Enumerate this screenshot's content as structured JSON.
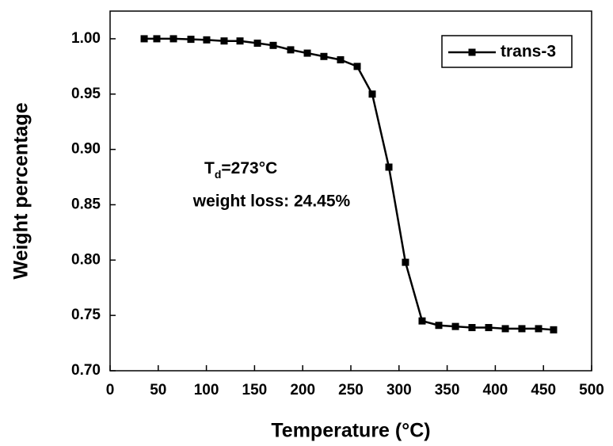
{
  "chart_data": {
    "type": "line",
    "x_label": "Temperature (°C)",
    "y_label": "Weight percentage",
    "annotation": {
      "symbol": "T",
      "subscript": "d",
      "rest": "=273°C",
      "line2": "weight loss: 24.45%"
    },
    "xlim": [
      0,
      500
    ],
    "xticks": [
      0,
      50,
      100,
      150,
      200,
      250,
      300,
      350,
      400,
      450,
      500
    ],
    "ylim": [
      0.7,
      1.025
    ],
    "yticks": [
      {
        "value": 0.7,
        "label": "0.70"
      },
      {
        "value": 0.75,
        "label": "0.75"
      },
      {
        "value": 0.8,
        "label": "0.80"
      },
      {
        "value": 0.85,
        "label": "0.85"
      },
      {
        "value": 0.9,
        "label": "0.90"
      },
      {
        "value": 0.95,
        "label": "0.95"
      },
      {
        "value": 1.0,
        "label": "1.00"
      }
    ],
    "legend_position": "upper right",
    "series": [
      {
        "name": "trans-3",
        "color": "#000000",
        "x": [
          35.4,
          48.5,
          65.8,
          83.9,
          100.3,
          118.4,
          134.9,
          153,
          169.4,
          187.5,
          204.8,
          222,
          239.3,
          256.6,
          272.2,
          289.5,
          306.7,
          324,
          341.3,
          358.6,
          375.8,
          393.1,
          410.4,
          427.6,
          444.9,
          460.5
        ],
        "values": [
          1.0,
          1.0,
          1.0,
          0.9995,
          0.999,
          0.998,
          0.998,
          0.996,
          0.994,
          0.99,
          0.987,
          0.984,
          0.981,
          0.975,
          0.95,
          0.884,
          0.798,
          0.745,
          0.741,
          0.74,
          0.739,
          0.739,
          0.738,
          0.738,
          0.738,
          0.737
        ]
      }
    ]
  }
}
